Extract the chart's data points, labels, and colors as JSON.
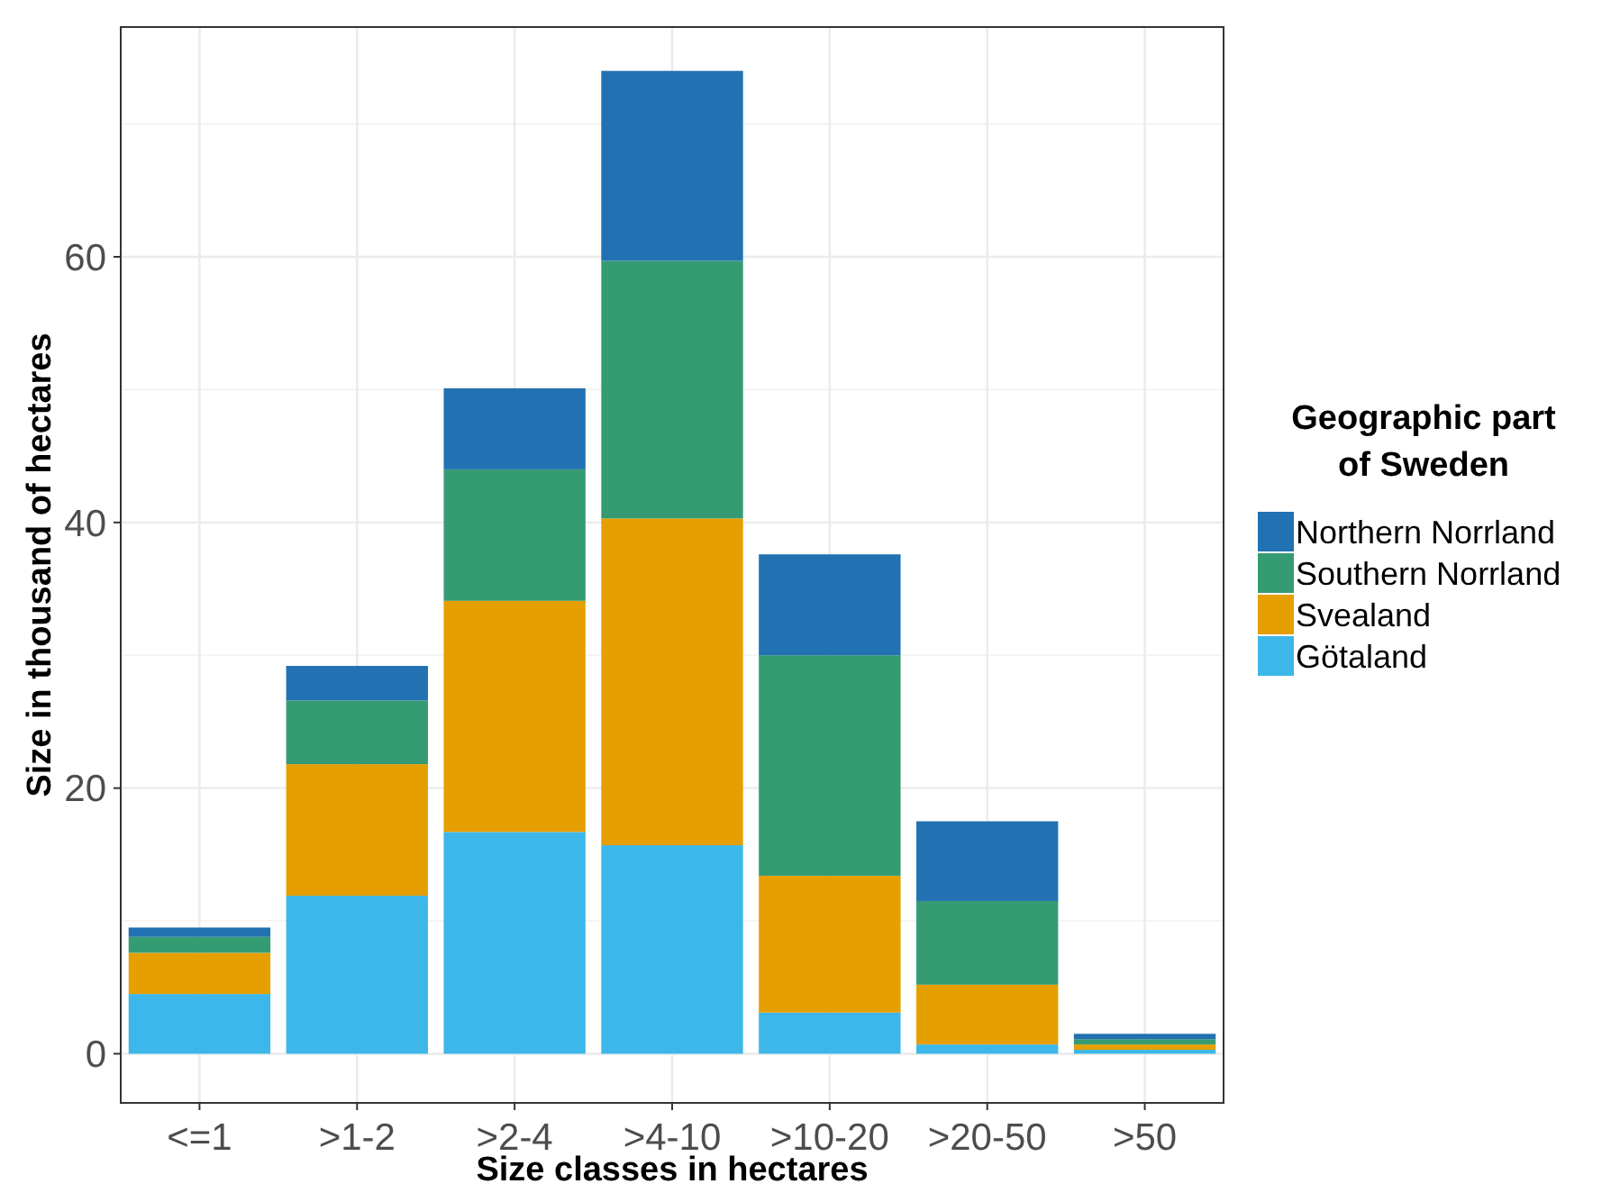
{
  "chart_data": {
    "type": "bar",
    "stacked": true,
    "xlabel": "Size classes in hectares",
    "ylabel": "Size in thousand of hectares",
    "legend_title": "Geographic part of Sweden",
    "legend": "right",
    "grid": true,
    "categories": [
      "<=1",
      ">1-2",
      ">2-4",
      ">4-10",
      ">10-20",
      ">20-50",
      ">50"
    ],
    "ylim": [
      -3.7,
      77.3
    ],
    "yticks": [
      0,
      20,
      40,
      60
    ],
    "series": [
      {
        "name": "Götaland",
        "color": "#3db7e9",
        "values": [
          4.5,
          11.9,
          16.7,
          15.7,
          3.1,
          0.7,
          0.3
        ]
      },
      {
        "name": "Svealand",
        "color": "#e69f00",
        "values": [
          3.1,
          9.9,
          17.4,
          24.6,
          10.3,
          4.5,
          0.4
        ]
      },
      {
        "name": "Southern Norrland",
        "color": "#359b73",
        "values": [
          1.2,
          4.8,
          9.9,
          19.4,
          16.6,
          6.3,
          0.4
        ]
      },
      {
        "name": "Northern Norrland",
        "color": "#2271b2",
        "values": [
          0.7,
          2.6,
          6.1,
          14.3,
          7.6,
          6.0,
          0.4
        ]
      }
    ]
  }
}
